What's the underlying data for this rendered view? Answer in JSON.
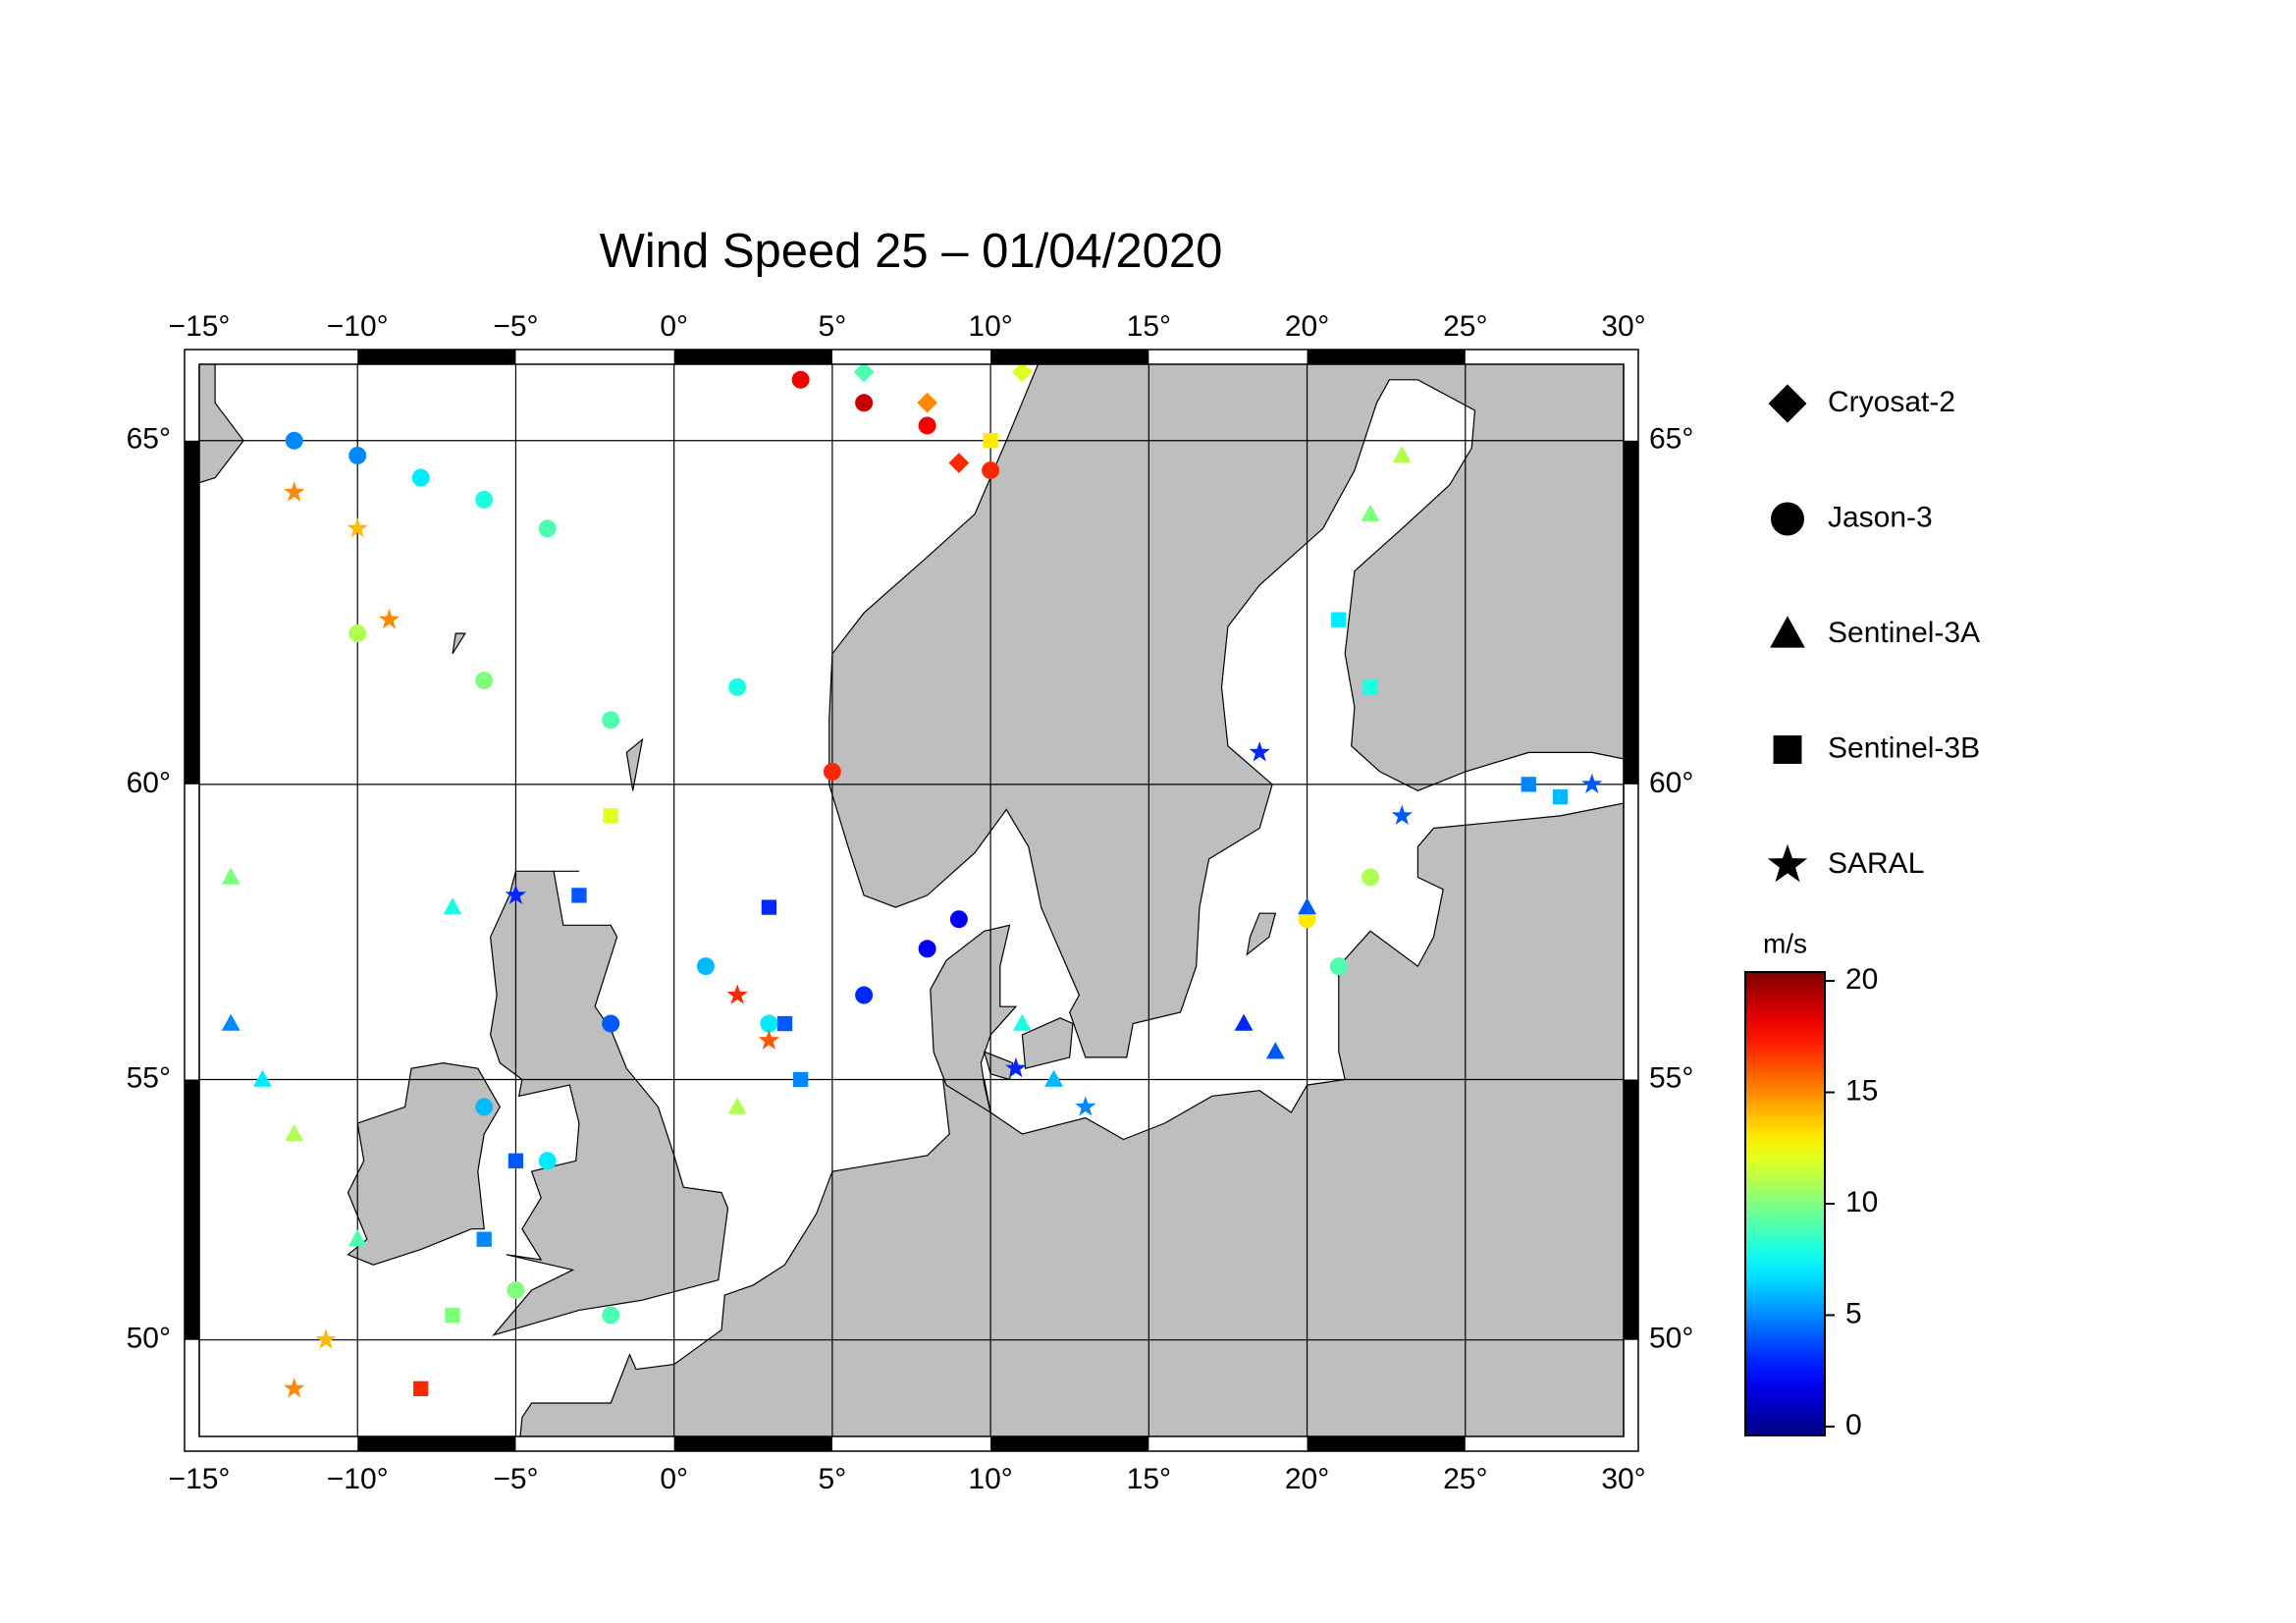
{
  "chart_data": {
    "type": "scatter",
    "title": "Wind Speed 25 – 01/04/2020",
    "projection": "mercator",
    "xlim": [
      -15,
      30
    ],
    "ylim": [
      48,
      66
    ],
    "xticks": [
      {
        "value": -15,
        "label": "−15°"
      },
      {
        "value": -10,
        "label": "−10°"
      },
      {
        "value": -5,
        "label": "−5°"
      },
      {
        "value": 0,
        "label": "0°"
      },
      {
        "value": 5,
        "label": "5°"
      },
      {
        "value": 10,
        "label": "10°"
      },
      {
        "value": 15,
        "label": "15°"
      },
      {
        "value": 20,
        "label": "20°"
      },
      {
        "value": 25,
        "label": "25°"
      },
      {
        "value": 30,
        "label": "30°"
      }
    ],
    "yticks": [
      {
        "value": 50,
        "label": "50°"
      },
      {
        "value": 55,
        "label": "55°"
      },
      {
        "value": 60,
        "label": "60°"
      },
      {
        "value": 65,
        "label": "65°"
      }
    ],
    "grid": true,
    "land_color": "#bebebe",
    "colorbar": {
      "label": "m/s",
      "colormap": "jet",
      "lim": [
        -0.4,
        20.4
      ],
      "ticks": [
        0,
        5,
        10,
        15,
        20
      ]
    },
    "series": [
      {
        "name": "Cryosat-2",
        "marker": "diamond",
        "x": [
          9,
          8,
          11,
          6
        ],
        "y": [
          64.7,
          65.5,
          65.9,
          65.9
        ],
        "values": [
          17,
          15,
          12,
          9
        ]
      },
      {
        "name": "Jason-3",
        "marker": "circle",
        "x": [
          -12,
          -10,
          -8,
          -6,
          -4,
          -10,
          -6,
          -2,
          2,
          5,
          6,
          8,
          9,
          -6,
          -4,
          -2,
          1,
          3,
          21,
          20,
          22,
          -5,
          -2,
          4,
          6,
          8,
          10
        ],
        "y": [
          65,
          64.8,
          64.5,
          64.2,
          63.8,
          62.3,
          61.6,
          61,
          61.5,
          60.2,
          56.5,
          57.3,
          57.8,
          54.5,
          53.5,
          56,
          57,
          56,
          57,
          57.8,
          58.5,
          51,
          50.5,
          65.8,
          65.5,
          65.2,
          64.6
        ],
        "values": [
          5,
          5,
          7,
          8,
          9,
          11,
          10,
          9,
          8,
          17,
          3,
          2,
          2,
          6,
          7,
          4,
          6,
          7,
          9,
          13,
          11,
          10,
          9,
          18,
          19,
          18,
          17
        ]
      },
      {
        "name": "Sentinel-3A",
        "marker": "triangle",
        "x": [
          -14,
          -13,
          -12,
          -10,
          11,
          12,
          18,
          19,
          20,
          22,
          23,
          -14,
          -7,
          2
        ],
        "y": [
          56,
          55,
          54,
          52,
          56,
          55,
          56,
          55.5,
          58,
          64,
          64.8,
          58.5,
          58,
          54.5
        ],
        "values": [
          5,
          7,
          11,
          9,
          8,
          6,
          3,
          4,
          4,
          10,
          11,
          10,
          8,
          11
        ]
      },
      {
        "name": "Sentinel-3B",
        "marker": "square",
        "x": [
          -8,
          -7,
          -6,
          -5,
          3,
          3.5,
          4,
          -3,
          -2,
          22,
          21,
          27,
          28,
          10
        ],
        "y": [
          49,
          50.5,
          52,
          53.5,
          58,
          56,
          55,
          58.2,
          59.5,
          61.5,
          62.5,
          60,
          59.8,
          65
        ],
        "values": [
          17,
          10,
          5,
          4,
          3,
          4,
          5,
          4,
          12,
          8,
          7,
          5,
          6,
          13
        ]
      },
      {
        "name": "SARAL",
        "marker": "star",
        "x": [
          -12,
          -10,
          -9,
          -12,
          -11,
          3,
          2,
          10.8,
          13,
          18.5,
          29,
          23,
          -5
        ],
        "y": [
          64.3,
          63.8,
          62.5,
          49,
          50,
          55.7,
          56.5,
          55.2,
          54.5,
          60.5,
          60,
          59.5,
          58.2
        ],
        "values": [
          15,
          14,
          15,
          15,
          14,
          16,
          17,
          3,
          5,
          3,
          4,
          4,
          3
        ]
      }
    ]
  }
}
